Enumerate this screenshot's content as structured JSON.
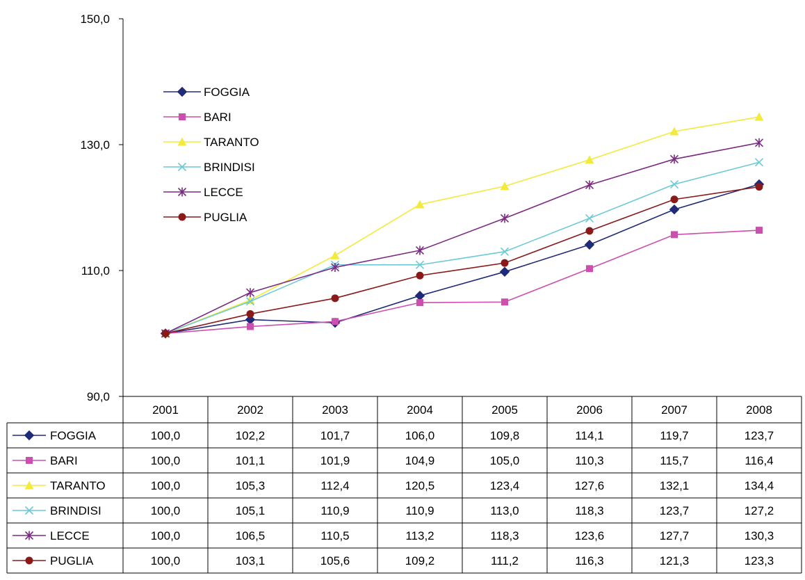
{
  "chart_data": {
    "type": "line",
    "title": "",
    "xlabel": "",
    "ylabel": "",
    "ylim": [
      90,
      150
    ],
    "y_ticks": [
      "90,0",
      "110,0",
      "130,0",
      "150,0"
    ],
    "y_tick_values": [
      90,
      110,
      130,
      150
    ],
    "categories": [
      "2001",
      "2002",
      "2003",
      "2004",
      "2005",
      "2006",
      "2007",
      "2008"
    ],
    "legend_position": "top-left",
    "grid": false,
    "series": [
      {
        "name": "FOGGIA",
        "color": "#1f2a78",
        "marker": "diamond",
        "values": [
          100.0,
          102.2,
          101.7,
          106.0,
          109.8,
          114.1,
          119.7,
          123.7
        ],
        "labels": [
          "100,0",
          "102,2",
          "101,7",
          "106,0",
          "109,8",
          "114,1",
          "119,7",
          "123,7"
        ]
      },
      {
        "name": "BARI",
        "color": "#cc4fb0",
        "marker": "square",
        "values": [
          100.0,
          101.1,
          101.9,
          104.9,
          105.0,
          110.3,
          115.7,
          116.4
        ],
        "labels": [
          "100,0",
          "101,1",
          "101,9",
          "104,9",
          "105,0",
          "110,3",
          "115,7",
          "116,4"
        ]
      },
      {
        "name": "TARANTO",
        "color": "#f2ea3c",
        "marker": "triangle",
        "values": [
          100.0,
          105.3,
          112.4,
          120.5,
          123.4,
          127.6,
          132.1,
          134.4
        ],
        "labels": [
          "100,0",
          "105,3",
          "112,4",
          "120,5",
          "123,4",
          "127,6",
          "132,1",
          "134,4"
        ]
      },
      {
        "name": "BRINDISI",
        "color": "#6cc9d6",
        "marker": "x",
        "values": [
          100.0,
          105.1,
          110.9,
          110.9,
          113.0,
          118.3,
          123.7,
          127.2
        ],
        "labels": [
          "100,0",
          "105,1",
          "110,9",
          "110,9",
          "113,0",
          "118,3",
          "123,7",
          "127,2"
        ]
      },
      {
        "name": "LECCE",
        "color": "#7b2a82",
        "marker": "star",
        "values": [
          100.0,
          106.5,
          110.5,
          113.2,
          118.3,
          123.6,
          127.7,
          130.3
        ],
        "labels": [
          "100,0",
          "106,5",
          "110,5",
          "113,2",
          "118,3",
          "123,6",
          "127,7",
          "130,3"
        ]
      },
      {
        "name": "PUGLIA",
        "color": "#8a1a1a",
        "marker": "circle",
        "values": [
          100.0,
          103.1,
          105.6,
          109.2,
          111.2,
          116.3,
          121.3,
          123.3
        ],
        "labels": [
          "100,0",
          "103,1",
          "105,6",
          "109,2",
          "111,2",
          "116,3",
          "121,3",
          "123,3"
        ]
      }
    ]
  }
}
